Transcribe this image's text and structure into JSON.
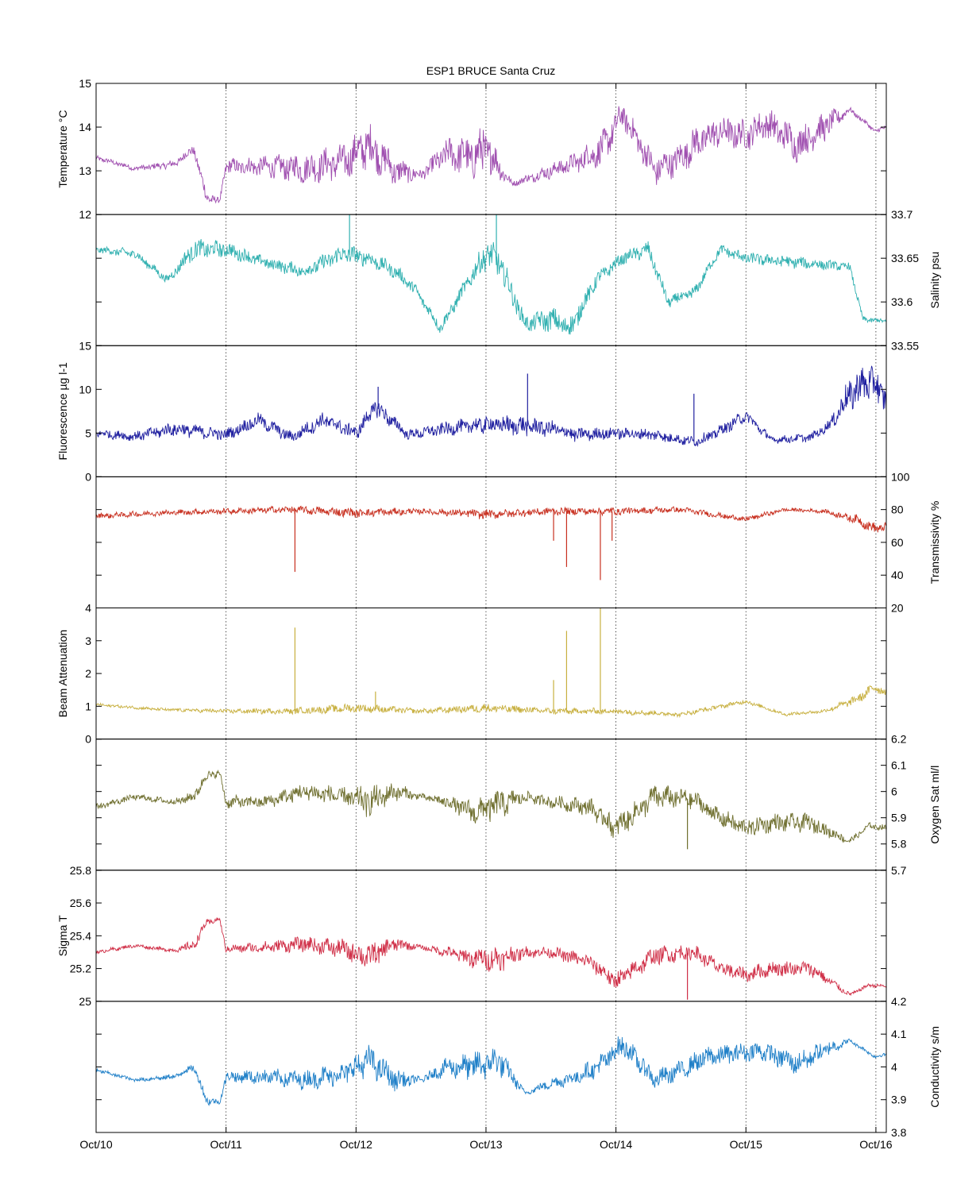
{
  "figure": {
    "title": "ESP1 BRUCE Santa Cruz"
  },
  "chart_data": {
    "type": "line",
    "title": "ESP1 BRUCE Santa Cruz",
    "x_axis": {
      "unit": "day of October",
      "range": [
        10,
        16.08
      ],
      "tick_values": [
        10,
        11,
        12,
        13,
        14,
        15,
        16
      ],
      "tick_labels": [
        "Oct/10",
        "Oct/11",
        "Oct/12",
        "Oct/13",
        "Oct/14",
        "Oct/15",
        "Oct/16"
      ],
      "grid": "dotted vertical lines at day ticks"
    },
    "panels": [
      {
        "label": "Temperature °C",
        "axis_side": "left",
        "color": "#a050b0",
        "ylim": [
          12,
          15
        ],
        "ticks": [
          "12",
          "13",
          "14",
          "15"
        ],
        "x": [
          10.0,
          10.3,
          10.6,
          10.75,
          10.85,
          10.95,
          11.0,
          11.3,
          11.6,
          11.9,
          12.1,
          12.3,
          12.5,
          12.7,
          12.9,
          13.0,
          13.2,
          13.5,
          13.7,
          13.9,
          14.05,
          14.3,
          14.5,
          14.6,
          14.8,
          15.0,
          15.15,
          15.4,
          15.6,
          15.8,
          16.0,
          16.08
        ],
        "values": [
          13.3,
          13.05,
          13.15,
          13.5,
          12.4,
          12.3,
          13.1,
          13.1,
          13.05,
          13.2,
          13.6,
          13.0,
          12.9,
          13.4,
          13.3,
          13.5,
          12.7,
          13.0,
          13.2,
          13.5,
          14.3,
          13.0,
          13.3,
          13.6,
          13.9,
          13.8,
          14.1,
          13.6,
          14.0,
          14.4,
          13.9,
          14.0
        ],
        "amplitude": [
          0.05,
          0.05,
          0.08,
          0.1,
          0.15,
          0.05,
          0.15,
          0.2,
          0.3,
          0.35,
          0.45,
          0.3,
          0.1,
          0.3,
          0.45,
          0.5,
          0.05,
          0.15,
          0.2,
          0.35,
          0.25,
          0.3,
          0.3,
          0.35,
          0.3,
          0.3,
          0.3,
          0.35,
          0.3,
          0.05,
          0.05,
          0.05
        ]
      },
      {
        "label": "Salinity psu",
        "axis_side": "right",
        "color": "#30b0b0",
        "ylim": [
          33.55,
          33.7
        ],
        "ticks": [
          "33.55",
          "33.6",
          "33.65",
          "33.7"
        ],
        "x": [
          10.0,
          10.3,
          10.55,
          10.75,
          11.0,
          11.3,
          11.6,
          11.9,
          12.1,
          12.3,
          12.45,
          12.65,
          12.85,
          13.0,
          13.1,
          13.3,
          13.5,
          13.65,
          13.85,
          14.05,
          14.25,
          14.4,
          14.6,
          14.8,
          15.0,
          15.4,
          15.8,
          15.9,
          16.08
        ],
        "values": [
          33.66,
          33.655,
          33.625,
          33.66,
          33.66,
          33.645,
          33.635,
          33.655,
          33.65,
          33.635,
          33.615,
          33.57,
          33.62,
          33.655,
          33.645,
          33.575,
          33.58,
          33.57,
          33.625,
          33.65,
          33.66,
          33.6,
          33.61,
          33.66,
          33.65,
          33.645,
          33.64,
          33.58,
          33.578
        ],
        "amplitude": [
          0.003,
          0.005,
          0.004,
          0.01,
          0.008,
          0.006,
          0.007,
          0.01,
          0.008,
          0.007,
          0.006,
          0.006,
          0.008,
          0.015,
          0.015,
          0.008,
          0.012,
          0.012,
          0.008,
          0.006,
          0.008,
          0.006,
          0.006,
          0.005,
          0.006,
          0.006,
          0.004,
          0.003,
          0.002
        ]
      },
      {
        "label": "Fluorescence µg l-1",
        "axis_side": "left",
        "color": "#2020a0",
        "ylim": [
          0,
          15
        ],
        "ticks": [
          "0",
          "5",
          "10",
          "15"
        ],
        "x": [
          10.0,
          10.3,
          10.6,
          11.0,
          11.25,
          11.5,
          11.75,
          12.0,
          12.15,
          12.4,
          12.7,
          13.0,
          13.3,
          13.5,
          13.7,
          14.0,
          14.3,
          14.6,
          14.75,
          15.0,
          15.2,
          15.5,
          15.65,
          15.8,
          15.95,
          16.08
        ],
        "values": [
          5.0,
          4.6,
          5.5,
          4.8,
          6.5,
          4.5,
          6.5,
          5.0,
          8.0,
          4.8,
          5.5,
          6.0,
          5.8,
          5.5,
          4.8,
          5.0,
          4.8,
          4.0,
          4.8,
          7.0,
          4.2,
          4.5,
          6.0,
          9.5,
          11.0,
          9.0
        ],
        "amplitude": [
          0.4,
          0.5,
          0.7,
          0.6,
          0.7,
          0.6,
          0.8,
          0.7,
          1.0,
          0.5,
          0.7,
          0.9,
          1.0,
          0.8,
          0.7,
          0.6,
          0.6,
          0.5,
          0.6,
          0.6,
          0.4,
          0.4,
          0.6,
          1.8,
          2.0,
          1.5
        ]
      },
      {
        "label": "Transmissivity %",
        "axis_side": "right",
        "color": "#c83020",
        "ylim": [
          20,
          100
        ],
        "ticks": [
          "20",
          "40",
          "60",
          "80",
          "100"
        ],
        "x": [
          10.0,
          10.5,
          11.0,
          11.5,
          12.0,
          12.5,
          13.0,
          13.5,
          14.0,
          14.5,
          15.0,
          15.3,
          15.6,
          15.85,
          16.0,
          16.08
        ],
        "values": [
          76,
          78,
          79,
          80,
          78,
          79,
          77,
          79,
          79,
          80,
          74,
          80,
          79,
          74,
          68,
          70
        ],
        "amplitude": [
          1.5,
          1.5,
          1.5,
          2,
          2.5,
          1.5,
          2.5,
          2,
          2,
          1.5,
          1.5,
          1,
          1,
          2.5,
          3,
          2
        ]
      },
      {
        "label": "Beam Attenuation",
        "axis_side": "left",
        "color": "#c8b040",
        "ylim": [
          0,
          4
        ],
        "ticks": [
          "0",
          "1",
          "2",
          "3",
          "4"
        ],
        "x": [
          10.0,
          10.5,
          11.0,
          11.5,
          12.0,
          12.5,
          13.0,
          13.5,
          14.0,
          14.5,
          15.0,
          15.3,
          15.6,
          15.85,
          16.0,
          16.08
        ],
        "values": [
          1.05,
          0.9,
          0.85,
          0.85,
          0.95,
          0.85,
          0.95,
          0.85,
          0.85,
          0.75,
          1.15,
          0.75,
          0.85,
          1.2,
          1.6,
          1.4
        ],
        "amplitude": [
          0.04,
          0.04,
          0.06,
          0.08,
          0.12,
          0.06,
          0.12,
          0.08,
          0.08,
          0.06,
          0.06,
          0.04,
          0.05,
          0.12,
          0.15,
          0.1
        ]
      },
      {
        "label": "Oxygen Sat ml/l",
        "axis_side": "right",
        "color": "#707030",
        "ylim": [
          5.7,
          6.2
        ],
        "ticks": [
          "5.7",
          "5.8",
          "5.9",
          "6",
          "6.1",
          "6.2"
        ],
        "x": [
          10.0,
          10.3,
          10.6,
          10.75,
          10.85,
          10.95,
          11.0,
          11.3,
          11.6,
          11.9,
          12.1,
          12.3,
          12.5,
          12.7,
          12.9,
          13.1,
          13.3,
          13.5,
          13.8,
          14.0,
          14.3,
          14.6,
          14.8,
          15.0,
          15.2,
          15.5,
          15.8,
          15.95,
          16.08
        ],
        "values": [
          5.94,
          5.98,
          5.96,
          5.98,
          6.06,
          6.07,
          5.96,
          5.96,
          6.0,
          5.98,
          5.96,
          6.0,
          5.98,
          5.96,
          5.92,
          5.95,
          5.98,
          5.96,
          5.94,
          5.86,
          5.98,
          5.97,
          5.9,
          5.86,
          5.88,
          5.88,
          5.81,
          5.87,
          5.86
        ],
        "amplitude": [
          0.01,
          0.01,
          0.01,
          0.02,
          0.02,
          0.01,
          0.02,
          0.02,
          0.03,
          0.03,
          0.05,
          0.03,
          0.01,
          0.02,
          0.04,
          0.05,
          0.02,
          0.02,
          0.03,
          0.04,
          0.04,
          0.03,
          0.03,
          0.03,
          0.03,
          0.03,
          0.01,
          0.01,
          0.01
        ]
      },
      {
        "label": "Sigma T",
        "axis_side": "left",
        "color": "#d03048",
        "ylim": [
          25,
          25.8
        ],
        "ticks": [
          "25",
          "25.2",
          "25.4",
          "25.6",
          "25.8"
        ],
        "x": [
          10.0,
          10.3,
          10.6,
          10.75,
          10.85,
          10.95,
          11.0,
          11.3,
          11.6,
          11.9,
          12.1,
          12.3,
          12.5,
          12.7,
          12.9,
          13.1,
          13.3,
          13.5,
          13.8,
          14.0,
          14.3,
          14.6,
          14.8,
          15.0,
          15.2,
          15.5,
          15.8,
          15.95,
          16.08
        ],
        "values": [
          25.3,
          25.34,
          25.31,
          25.34,
          25.48,
          25.5,
          25.32,
          25.33,
          25.35,
          25.32,
          25.27,
          25.35,
          25.33,
          25.3,
          25.26,
          25.26,
          25.3,
          25.3,
          25.24,
          25.12,
          25.28,
          25.3,
          25.2,
          25.16,
          25.2,
          25.2,
          25.04,
          25.1,
          25.09
        ],
        "amplitude": [
          0.01,
          0.01,
          0.01,
          0.03,
          0.02,
          0.01,
          0.02,
          0.03,
          0.04,
          0.05,
          0.07,
          0.04,
          0.01,
          0.03,
          0.05,
          0.07,
          0.03,
          0.03,
          0.04,
          0.05,
          0.05,
          0.04,
          0.04,
          0.04,
          0.04,
          0.04,
          0.01,
          0.01,
          0.01
        ]
      },
      {
        "label": "Conductivity s/m",
        "axis_side": "right",
        "color": "#2080c8",
        "ylim": [
          3.8,
          4.2
        ],
        "ticks": [
          "3.8",
          "3.9",
          "4",
          "4.1",
          "4.2"
        ],
        "x": [
          10.0,
          10.3,
          10.6,
          10.75,
          10.85,
          10.95,
          11.0,
          11.3,
          11.6,
          11.9,
          12.1,
          12.3,
          12.5,
          12.7,
          12.9,
          13.1,
          13.3,
          13.5,
          13.7,
          13.9,
          14.05,
          14.3,
          14.5,
          14.7,
          14.9,
          15.1,
          15.4,
          15.6,
          15.8,
          16.0,
          16.08
        ],
        "values": [
          3.99,
          3.96,
          3.97,
          4.0,
          3.9,
          3.89,
          3.97,
          3.97,
          3.96,
          3.98,
          4.02,
          3.96,
          3.96,
          4.0,
          4.0,
          4.02,
          3.92,
          3.95,
          3.97,
          4.01,
          4.07,
          3.96,
          3.99,
          4.03,
          4.04,
          4.05,
          4.01,
          4.05,
          4.08,
          4.03,
          4.04
        ],
        "amplitude": [
          0.005,
          0.005,
          0.008,
          0.01,
          0.015,
          0.005,
          0.015,
          0.02,
          0.025,
          0.03,
          0.04,
          0.03,
          0.008,
          0.025,
          0.04,
          0.04,
          0.005,
          0.015,
          0.02,
          0.03,
          0.03,
          0.025,
          0.025,
          0.03,
          0.025,
          0.025,
          0.03,
          0.025,
          0.005,
          0.005,
          0.005
        ]
      }
    ],
    "spikes": [
      {
        "panel": 3,
        "x": 11.53,
        "value": 42
      },
      {
        "panel": 3,
        "x": 13.52,
        "value": 61
      },
      {
        "panel": 3,
        "x": 13.62,
        "value": 45
      },
      {
        "panel": 3,
        "x": 13.88,
        "value": 37
      },
      {
        "panel": 3,
        "x": 13.97,
        "value": 61
      },
      {
        "panel": 4,
        "x": 11.53,
        "value": 3.4
      },
      {
        "panel": 4,
        "x": 13.52,
        "value": 1.8
      },
      {
        "panel": 4,
        "x": 13.62,
        "value": 3.3
      },
      {
        "panel": 4,
        "x": 13.88,
        "value": 4.0
      },
      {
        "panel": 4,
        "x": 12.15,
        "value": 1.45
      },
      {
        "panel": 2,
        "x": 12.17,
        "value": 10.3
      },
      {
        "panel": 2,
        "x": 13.32,
        "value": 11.8
      },
      {
        "panel": 2,
        "x": 14.6,
        "value": 9.5
      },
      {
        "panel": 1,
        "x": 11.95,
        "value": 33.7
      },
      {
        "panel": 1,
        "x": 13.08,
        "value": 33.7
      },
      {
        "panel": 6,
        "x": 14.55,
        "value": 25.01
      },
      {
        "panel": 5,
        "x": 14.55,
        "value": 5.78
      }
    ]
  }
}
